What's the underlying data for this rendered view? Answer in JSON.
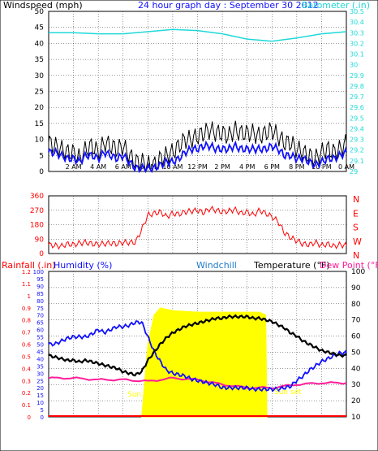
{
  "header": {
    "title": "24 hour graph day : September 30 2012"
  },
  "colors": {
    "bg": "#ffffff",
    "frame": "#000000",
    "gust": "#000000",
    "wind_avg": "#1010ff",
    "wind_min": "#808080",
    "barometer": "#20d8d8",
    "direction": "#ff0000",
    "temperature": "#000000",
    "dewpoint": "#ff1c9a",
    "humidity": "#1010ff",
    "solar": "#ffff00",
    "rain": "#ff0000"
  },
  "x_axis_labels": [
    "2 AM",
    "4 AM",
    "6 AM",
    "8 AM",
    "10 AM",
    "12 PM",
    "2 PM",
    "4 PM",
    "6 PM",
    "8 PM",
    "10 PM",
    "0 AM"
  ],
  "chart_data": [
    {
      "type": "line",
      "title": "24 hour graph day : September 30 2012",
      "xlabel": "",
      "ylabel": "Windspeed (mph)",
      "ylabel2": "Barometer (.in)",
      "x_range_hours": [
        0,
        24
      ],
      "ylim": [
        0,
        50
      ],
      "ylim2": [
        29.0,
        30.5
      ],
      "y_ticks": [
        "0",
        "5",
        "10",
        "15",
        "20",
        "25",
        "30",
        "35",
        "40",
        "45",
        "50"
      ],
      "y2_ticks": [
        "29",
        "29.1",
        "29.2",
        "29.3",
        "29.4",
        "29.5",
        "29.6",
        "29.7",
        "29.8",
        "29.9",
        "30",
        "30.1",
        "30.2",
        "30.3",
        "30.4",
        "30.5"
      ],
      "series": [
        {
          "name": "Windspeed gust",
          "x": [
            0,
            0.5,
            1,
            1.5,
            2,
            2.5,
            3,
            3.5,
            4,
            4.5,
            5,
            5.5,
            6,
            6.5,
            7,
            7.5,
            8,
            8.5,
            9,
            9.5,
            10,
            10.5,
            11,
            11.5,
            12,
            12.5,
            13,
            13.5,
            14,
            14.5,
            15,
            15.5,
            16,
            16.5,
            17,
            17.5,
            18,
            18.5,
            19,
            19.5,
            20,
            20.5,
            21,
            21.5,
            22,
            22.5,
            23,
            23.5,
            24
          ],
          "values": [
            9,
            8,
            7,
            6,
            6,
            4,
            7,
            8,
            6,
            9,
            8,
            7,
            8,
            5,
            3,
            3,
            2,
            2,
            4,
            5,
            6,
            8,
            10,
            10,
            11,
            12,
            13,
            12,
            12,
            11,
            13,
            12,
            12,
            12,
            11,
            12,
            13,
            11,
            9,
            9,
            7,
            6,
            5,
            4,
            6,
            7,
            6,
            7,
            9
          ]
        },
        {
          "name": "Windspeed average",
          "x": [
            0,
            0.5,
            1,
            1.5,
            2,
            2.5,
            3,
            3.5,
            4,
            4.5,
            5,
            5.5,
            6,
            6.5,
            7,
            7.5,
            8,
            8.5,
            9,
            9.5,
            10,
            10.5,
            11,
            11.5,
            12,
            12.5,
            13,
            13.5,
            14,
            14.5,
            15,
            15.5,
            16,
            16.5,
            17,
            17.5,
            18,
            18.5,
            19,
            19.5,
            20,
            20.5,
            21,
            21.5,
            22,
            22.5,
            23,
            23.5,
            24
          ],
          "values": [
            6,
            6,
            5,
            4,
            4,
            3,
            5,
            5,
            4,
            6,
            5,
            4,
            5,
            3,
            1,
            1,
            1,
            1,
            2,
            3,
            3,
            4,
            6,
            7,
            7,
            8,
            8,
            7,
            7,
            7,
            8,
            7,
            7,
            7,
            7,
            7,
            8,
            7,
            5,
            5,
            4,
            4,
            3,
            2,
            3,
            4,
            4,
            5,
            6
          ]
        },
        {
          "name": "Barometer",
          "x": [
            0,
            2,
            4,
            6,
            8,
            10,
            12,
            14,
            16,
            18,
            20,
            22,
            24
          ],
          "values": [
            30.3,
            30.3,
            30.29,
            30.29,
            30.31,
            30.33,
            30.32,
            30.29,
            30.24,
            30.22,
            30.25,
            30.29,
            30.31
          ]
        }
      ]
    },
    {
      "type": "line",
      "title": "",
      "ylabel": "",
      "ylim": [
        0,
        360
      ],
      "y_ticks": [
        "0",
        "90",
        "180",
        "270",
        "360"
      ],
      "compass_labels": [
        "N",
        "W",
        "S",
        "E",
        "N"
      ],
      "series": [
        {
          "name": "Wind direction",
          "x": [
            0,
            0.5,
            1,
            1.5,
            2,
            2.5,
            3,
            3.5,
            4,
            4.5,
            5,
            5.5,
            6,
            6.5,
            7,
            7.5,
            8,
            8.5,
            9,
            9.5,
            10,
            10.5,
            11,
            11.5,
            12,
            12.5,
            13,
            13.5,
            14,
            14.5,
            15,
            15.5,
            16,
            16.5,
            17,
            17.5,
            18,
            18.5,
            19,
            19.5,
            20,
            20.5,
            21,
            21.5,
            22,
            22.5,
            23,
            23.5,
            24
          ],
          "values": [
            55,
            50,
            45,
            60,
            55,
            65,
            70,
            60,
            58,
            62,
            65,
            60,
            70,
            68,
            70,
            150,
            240,
            250,
            260,
            230,
            250,
            245,
            260,
            265,
            270,
            255,
            280,
            270,
            260,
            265,
            275,
            250,
            260,
            240,
            270,
            250,
            230,
            200,
            130,
            100,
            80,
            60,
            55,
            70,
            50,
            60,
            45,
            55,
            50
          ]
        }
      ]
    },
    {
      "type": "line",
      "title": "",
      "ylabel": "Rainfall (.in)",
      "ylabel_humidity": "Humidity (%)",
      "ylabel_windchill": "Windchill",
      "ylabel2": "Temperature (°F)",
      "ylabel2_dew": "Dew Point (°F)",
      "ylim_rain": [
        0,
        1.2
      ],
      "ylim_humidity": [
        0,
        100
      ],
      "ylim2": [
        10,
        100
      ],
      "rain_ticks": [
        "0",
        "0.1",
        "0.2",
        "0.3",
        "0.4",
        "0.5",
        "0.6",
        "0.7",
        "0.8",
        "0.9",
        "1",
        "1.1",
        "1.2"
      ],
      "humidity_ticks": [
        "0",
        "5",
        "10",
        "15",
        "20",
        "25",
        "30",
        "35",
        "40",
        "45",
        "50",
        "55",
        "60",
        "65",
        "70",
        "75",
        "80",
        "85",
        "90",
        "95",
        "100"
      ],
      "temp_ticks": [
        "10",
        "20",
        "30",
        "40",
        "50",
        "60",
        "70",
        "80",
        "90",
        "100"
      ],
      "annotations": [
        "Sun rise",
        "Sun set"
      ],
      "series": [
        {
          "name": "Temperature",
          "x": [
            0,
            0.5,
            1,
            1.5,
            2,
            2.5,
            3,
            3.5,
            4,
            4.5,
            5,
            5.5,
            6,
            6.5,
            7,
            7.5,
            8,
            8.5,
            9,
            9.5,
            10,
            10.5,
            11,
            11.5,
            12,
            12.5,
            13,
            13.5,
            14,
            14.5,
            15,
            15.5,
            16,
            16.5,
            17,
            17.5,
            18,
            18.5,
            19,
            19.5,
            20,
            20.5,
            21,
            21.5,
            22,
            22.5,
            23,
            23.5,
            24
          ],
          "values": [
            48,
            47,
            46,
            45,
            45,
            44,
            45,
            44,
            43,
            42,
            41,
            40,
            38,
            37,
            36,
            38,
            45,
            50,
            55,
            59,
            62,
            64,
            66,
            67,
            68,
            69,
            70,
            71,
            71,
            72,
            72,
            72,
            72,
            71,
            71,
            70,
            69,
            67,
            65,
            62,
            60,
            57,
            55,
            53,
            51,
            50,
            49,
            48,
            48
          ]
        },
        {
          "name": "Humidity",
          "x": [
            0,
            0.5,
            1,
            1.5,
            2,
            2.5,
            3,
            3.5,
            4,
            4.5,
            5,
            5.5,
            6,
            6.5,
            7,
            7.5,
            8,
            8.5,
            9,
            9.5,
            10,
            10.5,
            11,
            11.5,
            12,
            12.5,
            13,
            13.5,
            14,
            14.5,
            15,
            15.5,
            16,
            16.5,
            17,
            17.5,
            18,
            18.5,
            19,
            19.5,
            20,
            20.5,
            21,
            21.5,
            22,
            22.5,
            23,
            23.5,
            24
          ],
          "values": [
            50,
            50,
            52,
            54,
            55,
            55,
            55,
            57,
            60,
            58,
            60,
            62,
            62,
            63,
            65,
            65,
            55,
            45,
            38,
            32,
            30,
            29,
            28,
            26,
            25,
            24,
            23,
            22,
            20,
            20,
            20,
            20,
            20,
            19,
            19,
            19,
            19,
            19,
            20,
            21,
            25,
            28,
            32,
            35,
            38,
            40,
            42,
            44,
            44
          ]
        },
        {
          "name": "Dew Point",
          "x": [
            0,
            2,
            4,
            6,
            8,
            10,
            12,
            14,
            16,
            18,
            20,
            22,
            24
          ],
          "values": [
            34,
            34,
            33,
            33,
            32,
            34,
            33,
            30,
            28,
            28,
            30,
            31,
            31
          ]
        },
        {
          "name": "Solar",
          "x": [
            7.5,
            8,
            8.5,
            9,
            10,
            12,
            14,
            16,
            17,
            17.5,
            17.6
          ],
          "values": [
            0,
            50,
            70,
            75,
            73,
            72,
            72,
            72,
            72,
            70,
            0
          ]
        },
        {
          "name": "Rainfall",
          "x": [
            0,
            24
          ],
          "values": [
            0,
            0
          ]
        }
      ]
    }
  ]
}
